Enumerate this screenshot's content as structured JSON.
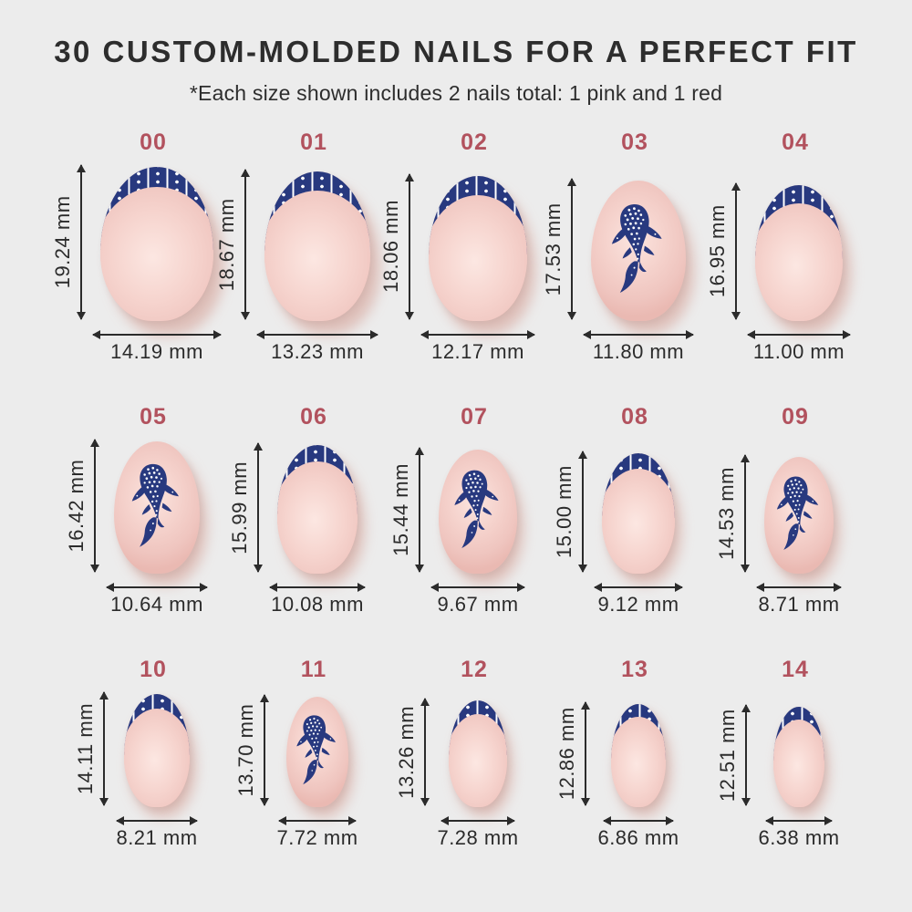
{
  "header": {
    "title": "30 CUSTOM-MOLDED NAILS FOR A PERFECT FIT",
    "subtitle": "*Each size shown includes 2 nails total: 1 pink and 1 red"
  },
  "unit": "mm",
  "colors": {
    "background": "#ececec",
    "title_text": "#2d2d2d",
    "size_label": "#b2525e",
    "dimension_text": "#2b2b2b",
    "arrow": "#2b2b2b",
    "nail_navy": "#28397f",
    "nail_pink": "#f2cdc8",
    "pattern_white": "#ffffff"
  },
  "sizes": [
    {
      "label": "00",
      "design": "french-tip",
      "height_mm": 19.24,
      "width_mm": 14.19,
      "height_text": "19.24 mm",
      "width_text": "14.19 mm"
    },
    {
      "label": "01",
      "design": "french-tip",
      "height_mm": 18.67,
      "width_mm": 13.23,
      "height_text": "18.67 mm",
      "width_text": "13.23 mm"
    },
    {
      "label": "02",
      "design": "french-tip",
      "height_mm": 18.06,
      "width_mm": 12.17,
      "height_text": "18.06 mm",
      "width_text": "12.17 mm"
    },
    {
      "label": "03",
      "design": "whale-shark",
      "height_mm": 17.53,
      "width_mm": 11.8,
      "height_text": "17.53 mm",
      "width_text": "11.80 mm"
    },
    {
      "label": "04",
      "design": "french-tip",
      "height_mm": 16.95,
      "width_mm": 11.0,
      "height_text": "16.95 mm",
      "width_text": "11.00 mm"
    },
    {
      "label": "05",
      "design": "whale-shark",
      "height_mm": 16.42,
      "width_mm": 10.64,
      "height_text": "16.42 mm",
      "width_text": "10.64 mm"
    },
    {
      "label": "06",
      "design": "french-tip",
      "height_mm": 15.99,
      "width_mm": 10.08,
      "height_text": "15.99 mm",
      "width_text": "10.08 mm"
    },
    {
      "label": "07",
      "design": "whale-shark",
      "height_mm": 15.44,
      "width_mm": 9.67,
      "height_text": "15.44 mm",
      "width_text": "9.67 mm"
    },
    {
      "label": "08",
      "design": "french-tip",
      "height_mm": 15.0,
      "width_mm": 9.12,
      "height_text": "15.00 mm",
      "width_text": "9.12 mm"
    },
    {
      "label": "09",
      "design": "whale-shark",
      "height_mm": 14.53,
      "width_mm": 8.71,
      "height_text": "14.53 mm",
      "width_text": "8.71 mm"
    },
    {
      "label": "10",
      "design": "french-tip",
      "height_mm": 14.11,
      "width_mm": 8.21,
      "height_text": "14.11 mm",
      "width_text": "8.21 mm"
    },
    {
      "label": "11",
      "design": "whale-shark",
      "height_mm": 13.7,
      "width_mm": 7.72,
      "height_text": "13.70 mm",
      "width_text": "7.72 mm"
    },
    {
      "label": "12",
      "design": "french-tip",
      "height_mm": 13.26,
      "width_mm": 7.28,
      "height_text": "13.26 mm",
      "width_text": "7.28 mm"
    },
    {
      "label": "13",
      "design": "french-tip",
      "height_mm": 12.86,
      "width_mm": 6.86,
      "height_text": "12.86 mm",
      "width_text": "6.86 mm"
    },
    {
      "label": "14",
      "design": "french-tip",
      "height_mm": 12.51,
      "width_mm": 6.38,
      "height_text": "12.51 mm",
      "width_text": "6.38 mm"
    }
  ]
}
